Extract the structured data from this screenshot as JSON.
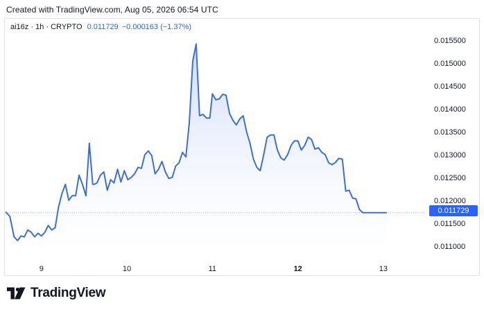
{
  "header": {
    "created": "Created with TradingView.com, Aug 05, 2026 06:54 UTC"
  },
  "legend": {
    "symbol": "ai16z · 1h · CRYPTO",
    "value": "0.011729",
    "change": "−0.000163 (−1.37%)"
  },
  "brand": {
    "name": "TradingView",
    "logo_icon": "tradingview-logo-icon"
  },
  "colors": {
    "line": "#3a6fd8",
    "fill_top": "#c9d6fa",
    "fill_bottom": "#ffffff",
    "last_label_bg": "#2962ff"
  },
  "chart_data": {
    "type": "area",
    "x_ticks": [
      {
        "label": "9",
        "x": 9,
        "bold": false
      },
      {
        "label": "10",
        "x": 10,
        "bold": false
      },
      {
        "label": "11",
        "x": 11,
        "bold": false
      },
      {
        "label": "12",
        "x": 12,
        "bold": true
      },
      {
        "label": "13",
        "x": 13,
        "bold": false
      }
    ],
    "y_ticks": [
      "0.011000",
      "0.011500",
      "0.012000",
      "0.012500",
      "0.013000",
      "0.013500",
      "0.014000",
      "0.014500",
      "0.015000",
      "0.015500"
    ],
    "xlim": [
      8.58,
      13.48
    ],
    "ylim": [
      0.0108,
      0.0157
    ],
    "last_value_label": "0.011729",
    "grid": false,
    "series": [
      {
        "x": [
          8.58,
          8.63,
          8.68,
          8.72,
          8.76,
          8.8,
          8.84,
          8.88,
          8.92,
          8.96,
          9.0,
          9.04,
          9.08,
          9.12,
          9.16,
          9.2,
          9.24,
          9.28,
          9.32,
          9.36,
          9.4,
          9.44,
          9.48,
          9.52,
          9.56,
          9.6,
          9.62,
          9.65,
          9.69,
          9.73,
          9.77,
          9.81,
          9.85,
          9.89,
          9.93,
          9.97,
          10.01,
          10.05,
          10.09,
          10.13,
          10.17,
          10.21,
          10.25,
          10.29,
          10.33,
          10.37,
          10.41,
          10.45,
          10.49,
          10.53,
          10.57,
          10.61,
          10.65,
          10.69,
          10.73,
          10.77,
          10.81,
          10.85,
          10.89,
          10.93,
          10.97,
          11.0,
          11.04,
          11.08,
          11.12,
          11.16,
          11.2,
          11.24,
          11.28,
          11.32,
          11.36,
          11.4,
          11.44,
          11.48,
          11.52,
          11.56,
          11.6,
          11.64,
          11.68,
          11.72,
          11.76,
          11.8,
          11.84,
          11.88,
          11.92,
          11.96,
          12.0,
          12.04,
          12.08,
          12.12,
          12.16,
          12.2,
          12.24,
          12.28,
          12.32,
          12.36,
          12.4,
          12.44,
          12.48,
          12.52,
          12.56,
          12.6,
          12.64,
          12.68,
          12.72,
          12.76,
          12.8,
          12.84,
          12.88,
          12.92,
          12.96,
          13.0,
          13.04
        ],
        "y": [
          0.01175,
          0.01165,
          0.0112,
          0.01112,
          0.01122,
          0.0112,
          0.01135,
          0.0113,
          0.0112,
          0.01128,
          0.01122,
          0.0113,
          0.01145,
          0.01135,
          0.0114,
          0.01185,
          0.01215,
          0.01235,
          0.012,
          0.0121,
          0.0121,
          0.01255,
          0.01235,
          0.0121,
          0.01325,
          0.01235,
          0.01235,
          0.01238,
          0.01255,
          0.01262,
          0.01222,
          0.01245,
          0.01238,
          0.01268,
          0.0124,
          0.01265,
          0.01245,
          0.0125,
          0.01258,
          0.01272,
          0.0127,
          0.013,
          0.01308,
          0.01298,
          0.01258,
          0.01268,
          0.01285,
          0.01262,
          0.01248,
          0.0125,
          0.01275,
          0.01282,
          0.01305,
          0.01295,
          0.0137,
          0.01505,
          0.01542,
          0.01385,
          0.01388,
          0.0138,
          0.0138,
          0.01433,
          0.0142,
          0.01422,
          0.01432,
          0.0143,
          0.0139,
          0.01375,
          0.01365,
          0.01378,
          0.01385,
          0.0135,
          0.01325,
          0.0129,
          0.01272,
          0.01265,
          0.013,
          0.01338,
          0.01343,
          0.01343,
          0.0131,
          0.01293,
          0.01288,
          0.013,
          0.0132,
          0.0133,
          0.0133,
          0.0131,
          0.0132,
          0.01338,
          0.01333,
          0.01312,
          0.01315,
          0.01305,
          0.013,
          0.01282,
          0.01278,
          0.01283,
          0.01292,
          0.0129,
          0.0122,
          0.01222,
          0.01205,
          0.01203,
          0.0118,
          0.01173,
          0.01173,
          0.01173,
          0.01173,
          0.01173,
          0.01173,
          0.01173,
          0.01173
        ]
      }
    ]
  }
}
